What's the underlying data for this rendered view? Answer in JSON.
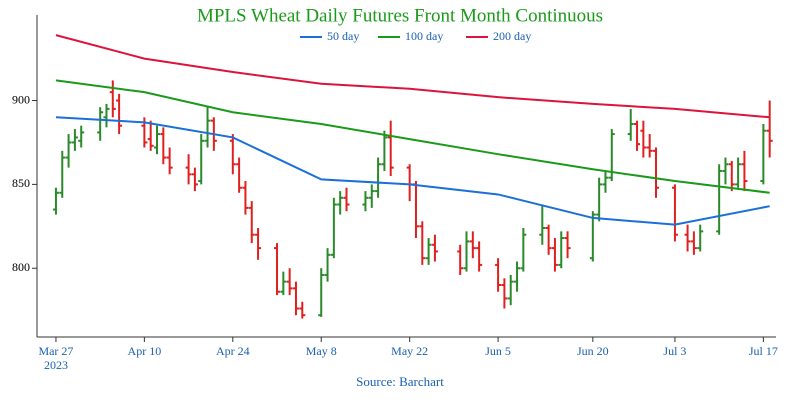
{
  "chart_data": {
    "type": "ohlc",
    "title": "MPLS Wheat Daily Futures Front Month Continuous",
    "source": "Source: Barchart",
    "x_year_label": "2023",
    "up_color": "#2a8a2a",
    "down_color": "#e0201e",
    "xlim": [
      "2023-03-24",
      "2023-07-19"
    ],
    "xticks": [
      {
        "value": "2023-03-27",
        "label": "Mar 27"
      },
      {
        "value": "2023-04-10",
        "label": "Apr 10"
      },
      {
        "value": "2023-04-24",
        "label": "Apr 24"
      },
      {
        "value": "2023-05-08",
        "label": "May 8"
      },
      {
        "value": "2023-05-22",
        "label": "May 22"
      },
      {
        "value": "2023-06-05",
        "label": "Jun 5"
      },
      {
        "value": "2023-06-20",
        "label": "Jun 20"
      },
      {
        "value": "2023-07-03",
        "label": "Jul 3"
      },
      {
        "value": "2023-07-17",
        "label": "Jul 17"
      }
    ],
    "ylim": [
      759,
      951
    ],
    "yticks": [
      800,
      850,
      900
    ],
    "x": [
      "2023-03-27",
      "2023-03-28",
      "2023-03-29",
      "2023-03-30",
      "2023-03-31",
      "2023-04-03",
      "2023-04-04",
      "2023-04-05",
      "2023-04-06",
      "2023-04-10",
      "2023-04-11",
      "2023-04-12",
      "2023-04-13",
      "2023-04-14",
      "2023-04-17",
      "2023-04-18",
      "2023-04-19",
      "2023-04-20",
      "2023-04-21",
      "2023-04-24",
      "2023-04-25",
      "2023-04-26",
      "2023-04-27",
      "2023-04-28",
      "2023-05-01",
      "2023-05-02",
      "2023-05-03",
      "2023-05-04",
      "2023-05-05",
      "2023-05-08",
      "2023-05-09",
      "2023-05-10",
      "2023-05-11",
      "2023-05-12",
      "2023-05-15",
      "2023-05-16",
      "2023-05-17",
      "2023-05-18",
      "2023-05-19",
      "2023-05-22",
      "2023-05-23",
      "2023-05-24",
      "2023-05-25",
      "2023-05-26",
      "2023-05-30",
      "2023-05-31",
      "2023-06-01",
      "2023-06-02",
      "2023-06-05",
      "2023-06-06",
      "2023-06-07",
      "2023-06-08",
      "2023-06-09",
      "2023-06-12",
      "2023-06-13",
      "2023-06-14",
      "2023-06-15",
      "2023-06-16",
      "2023-06-20",
      "2023-06-21",
      "2023-06-22",
      "2023-06-23",
      "2023-06-26",
      "2023-06-27",
      "2023-06-28",
      "2023-06-29",
      "2023-06-30",
      "2023-07-03",
      "2023-07-05",
      "2023-07-06",
      "2023-07-07",
      "2023-07-10",
      "2023-07-11",
      "2023-07-12",
      "2023-07-13",
      "2023-07-14",
      "2023-07-17",
      "2023-07-18"
    ],
    "open": [
      835,
      845,
      866,
      875,
      876,
      881,
      890,
      905,
      900,
      885,
      877,
      872,
      880,
      866,
      860,
      856,
      852,
      876,
      888,
      876,
      862,
      848,
      836,
      820,
      812,
      786,
      792,
      788,
      776,
      772,
      796,
      808,
      838,
      842,
      838,
      842,
      846,
      862,
      878,
      860,
      850,
      825,
      806,
      814,
      810,
      800,
      816,
      812,
      802,
      790,
      782,
      792,
      800,
      820,
      824,
      812,
      802,
      818,
      806,
      832,
      850,
      854,
      880,
      886,
      882,
      872,
      870,
      848,
      820,
      816,
      812,
      822,
      858,
      862,
      850,
      862,
      852,
      882
    ],
    "high": [
      848,
      870,
      880,
      883,
      885,
      896,
      898,
      912,
      904,
      890,
      888,
      885,
      884,
      872,
      868,
      860,
      880,
      896,
      890,
      880,
      866,
      852,
      840,
      824,
      815,
      798,
      800,
      792,
      780,
      800,
      812,
      842,
      846,
      848,
      846,
      850,
      866,
      882,
      888,
      862,
      852,
      828,
      818,
      820,
      814,
      822,
      822,
      816,
      806,
      794,
      796,
      804,
      824,
      838,
      826,
      818,
      822,
      822,
      834,
      854,
      858,
      883,
      895,
      888,
      888,
      880,
      872,
      850,
      826,
      822,
      826,
      862,
      866,
      864,
      866,
      870,
      886,
      900
    ],
    "low": [
      832,
      842,
      860,
      870,
      872,
      876,
      884,
      890,
      880,
      872,
      870,
      868,
      862,
      856,
      850,
      846,
      850,
      872,
      870,
      856,
      845,
      832,
      815,
      805,
      784,
      784,
      784,
      772,
      770,
      771,
      792,
      806,
      832,
      834,
      834,
      836,
      842,
      858,
      855,
      840,
      818,
      802,
      802,
      804,
      796,
      798,
      806,
      798,
      786,
      776,
      778,
      786,
      798,
      814,
      808,
      798,
      800,
      806,
      804,
      828,
      845,
      852,
      876,
      870,
      866,
      866,
      842,
      816,
      810,
      808,
      810,
      820,
      850,
      846,
      848,
      846,
      850,
      866
    ],
    "close": [
      845,
      866,
      875,
      878,
      881,
      893,
      895,
      895,
      885,
      875,
      873,
      880,
      866,
      860,
      856,
      850,
      876,
      888,
      876,
      862,
      848,
      836,
      820,
      812,
      786,
      792,
      788,
      776,
      772,
      796,
      808,
      838,
      842,
      838,
      842,
      846,
      862,
      878,
      860,
      850,
      825,
      806,
      814,
      810,
      800,
      816,
      812,
      802,
      790,
      782,
      792,
      800,
      820,
      824,
      812,
      802,
      818,
      812,
      832,
      850,
      854,
      880,
      886,
      874,
      872,
      870,
      848,
      820,
      816,
      812,
      822,
      858,
      862,
      850,
      862,
      852,
      882,
      876
    ],
    "series": [
      {
        "name": "50 day",
        "color": "#1a6fd8",
        "x": [
          "2023-03-27",
          "2023-04-10",
          "2023-04-24",
          "2023-05-08",
          "2023-05-22",
          "2023-06-05",
          "2023-06-20",
          "2023-07-03",
          "2023-07-18"
        ],
        "values": [
          890,
          887,
          878,
          853,
          850,
          844,
          830,
          826,
          837
        ]
      },
      {
        "name": "100 day",
        "color": "#1a9a1a",
        "x": [
          "2023-03-27",
          "2023-04-10",
          "2023-04-24",
          "2023-05-08",
          "2023-05-22",
          "2023-06-05",
          "2023-06-20",
          "2023-07-03",
          "2023-07-18"
        ],
        "values": [
          912,
          905,
          893,
          886,
          877,
          868,
          859,
          852,
          845
        ]
      },
      {
        "name": "200 day",
        "color": "#dc143c",
        "x": [
          "2023-03-27",
          "2023-04-10",
          "2023-04-24",
          "2023-05-08",
          "2023-05-22",
          "2023-06-05",
          "2023-06-20",
          "2023-07-03",
          "2023-07-18"
        ],
        "values": [
          939,
          925,
          917,
          910,
          907,
          902,
          898,
          895,
          890
        ]
      }
    ]
  }
}
